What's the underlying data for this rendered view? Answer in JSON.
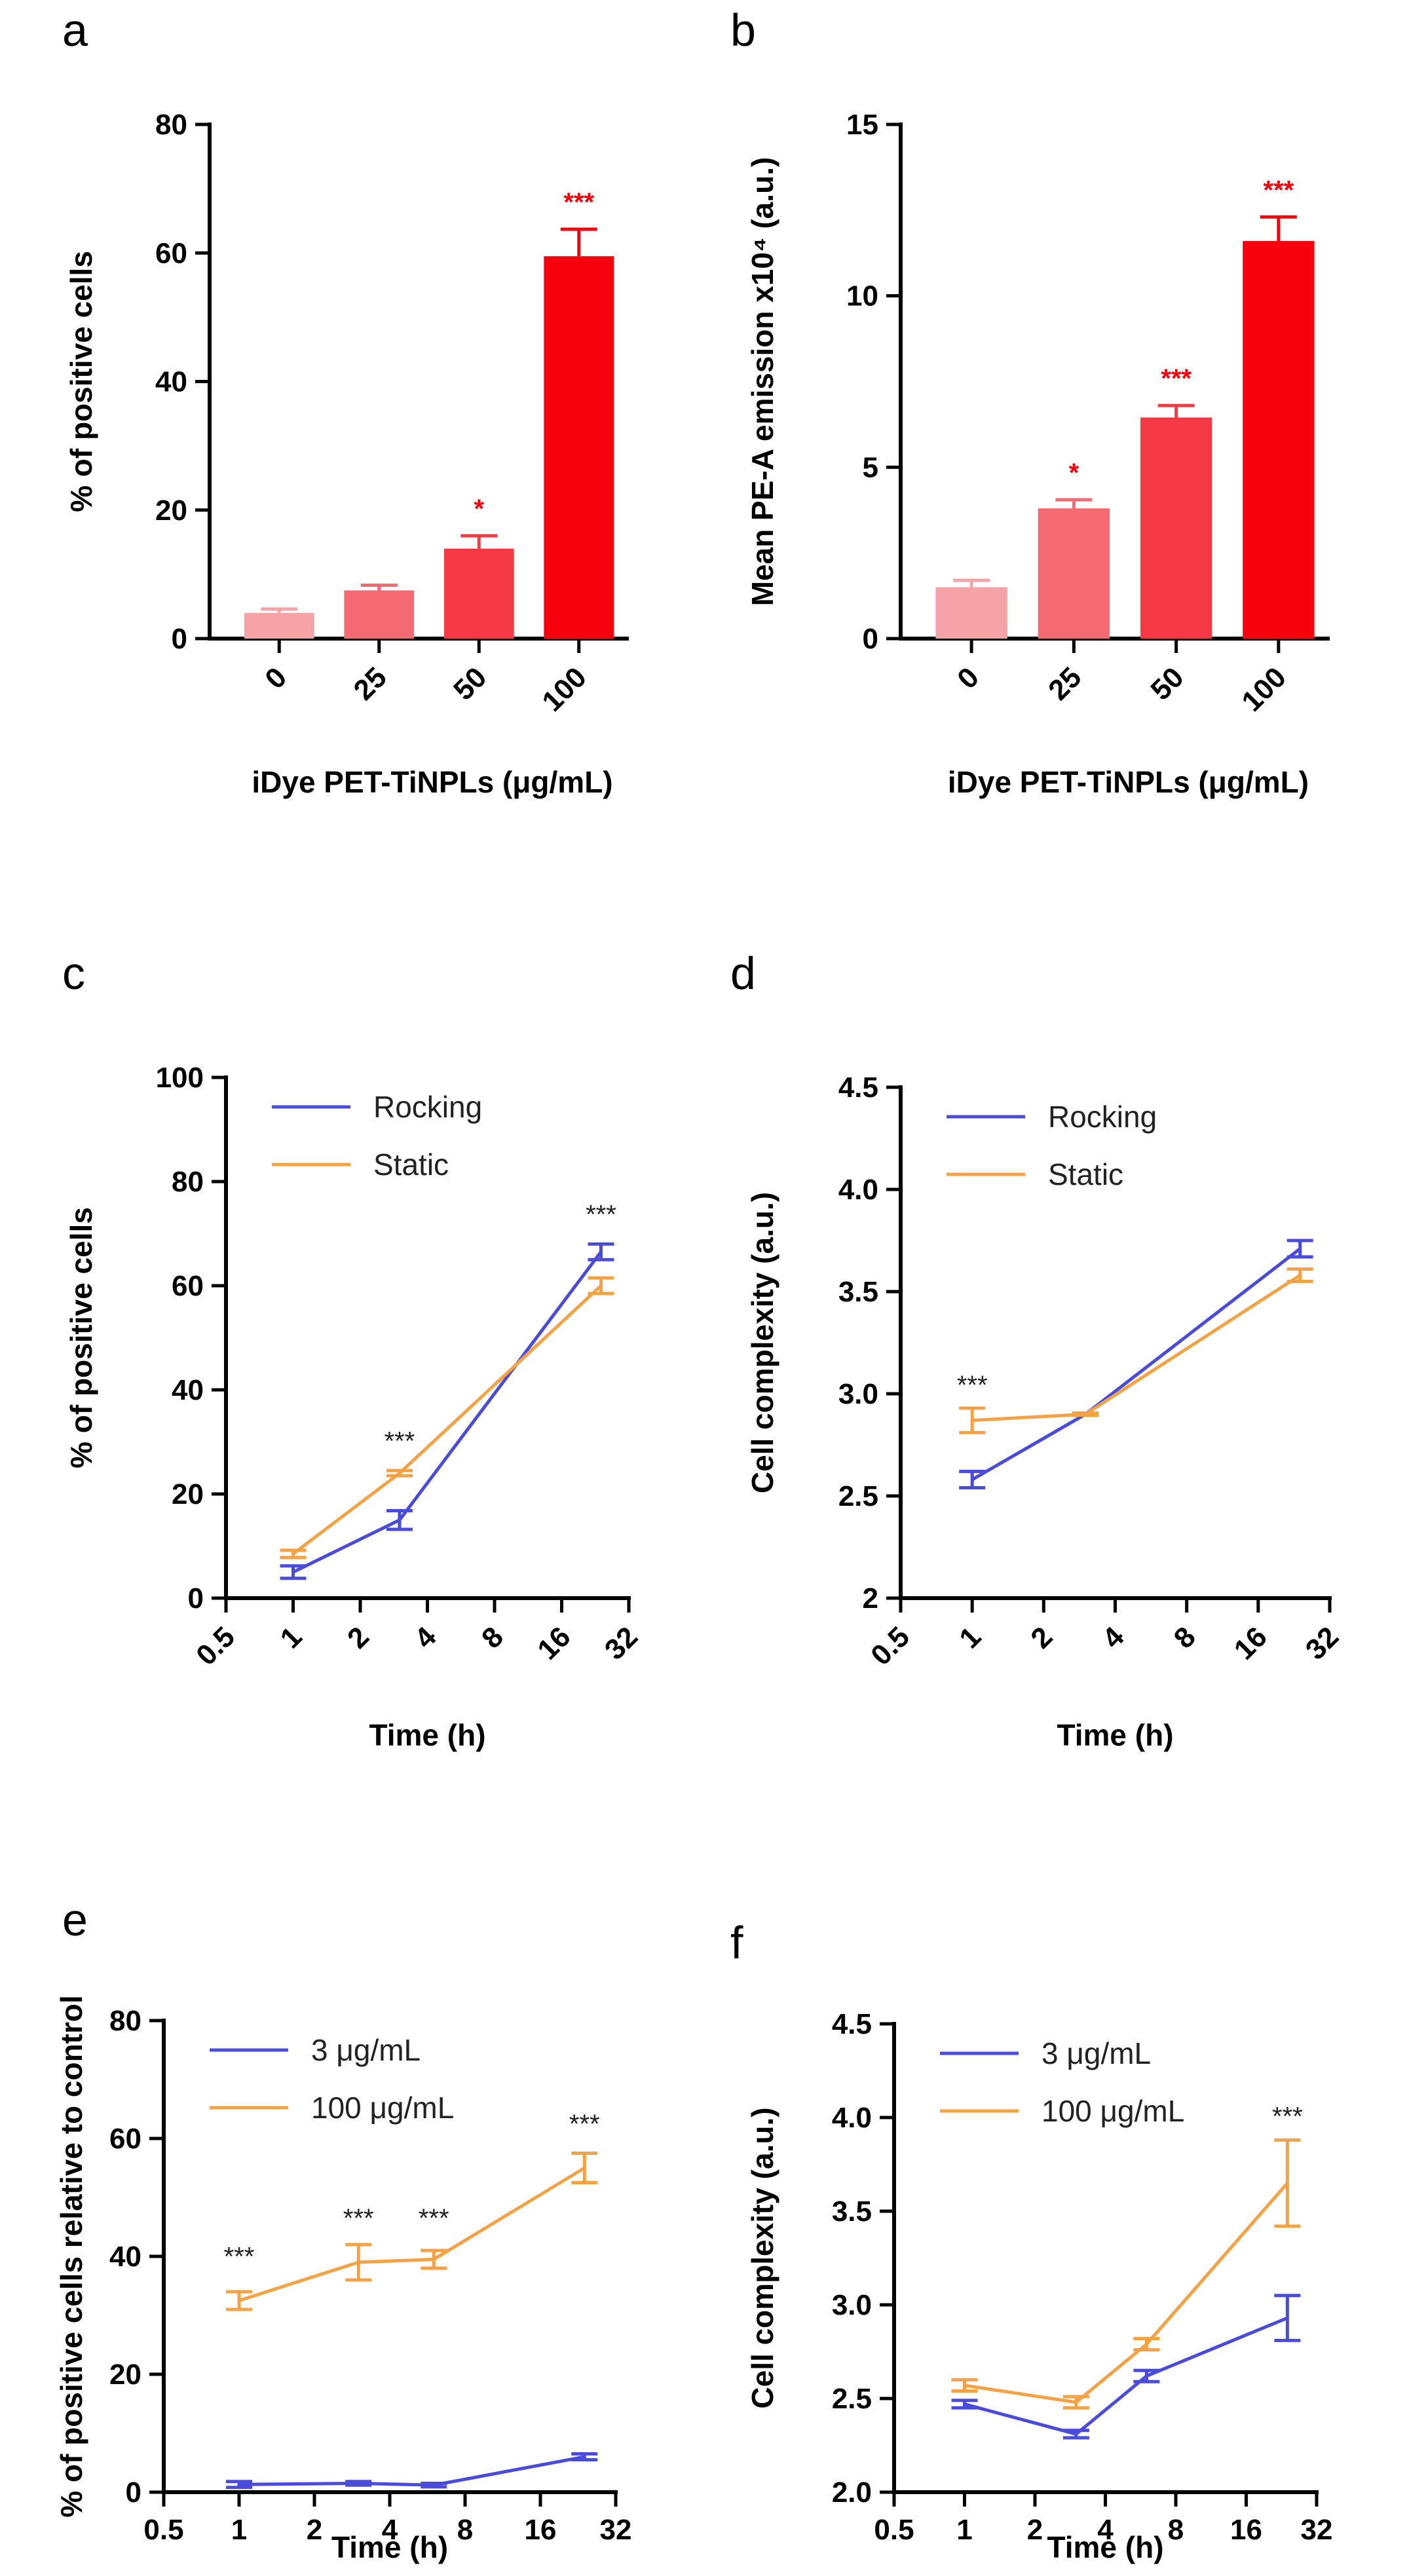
{
  "chart_data": [
    {
      "panel": "a",
      "type": "bar",
      "title": "a",
      "xlabel": "iDye PET-TiNPLs (μg/mL)",
      "ylabel": "% of positive cells",
      "ylim": [
        0,
        80
      ],
      "yticks": [
        0,
        20,
        40,
        60,
        80
      ],
      "categories": [
        "0",
        "25",
        "50",
        "100"
      ],
      "values": [
        4,
        7.5,
        14,
        59.5
      ],
      "errors": [
        0.6,
        0.8,
        2,
        4.2
      ],
      "significance": [
        "",
        "",
        "*",
        "***"
      ],
      "colors": [
        "#f6a3a8",
        "#f56a72",
        "#f63a45",
        "#f7000e"
      ]
    },
    {
      "panel": "b",
      "type": "bar",
      "title": "b",
      "xlabel": "iDye PET-TiNPLs (μg/mL)",
      "ylabel": "Mean PE-A emission x10⁴ (a.u.)",
      "ylim": [
        0,
        15
      ],
      "yticks": [
        0,
        5,
        10,
        15
      ],
      "categories": [
        "0",
        "25",
        "50",
        "100"
      ],
      "values": [
        1.5,
        3.8,
        6.45,
        11.6
      ],
      "errors": [
        0.2,
        0.25,
        0.35,
        0.7
      ],
      "significance": [
        "",
        "*",
        "***",
        "***"
      ],
      "colors": [
        "#f6a3a8",
        "#f56a72",
        "#f63a45",
        "#f7000e"
      ]
    },
    {
      "panel": "c",
      "type": "line",
      "title": "c",
      "xlabel": "Time (h)",
      "ylabel": "% of positive cells",
      "xscale": "log2",
      "xlim": [
        0.5,
        32
      ],
      "xticks": [
        "0.5",
        "1",
        "2",
        "4",
        "8",
        "16",
        "32"
      ],
      "ylim": [
        0,
        100
      ],
      "yticks": [
        0,
        20,
        40,
        60,
        80,
        100
      ],
      "tick_rotate": true,
      "series": [
        {
          "name": "Rocking",
          "color": "#4a4bdc",
          "x": [
            1,
            3,
            24
          ],
          "values": [
            5,
            15,
            66.5
          ],
          "errors": [
            1.2,
            1.8,
            1.5
          ]
        },
        {
          "name": "Static",
          "color": "#f5a245",
          "x": [
            1,
            3,
            24
          ],
          "values": [
            8.5,
            24,
            60
          ],
          "errors": [
            0.7,
            0.5,
            1.5
          ]
        }
      ],
      "annotations": [
        {
          "x": 3,
          "y": 28.5,
          "text": "***"
        },
        {
          "x": 24,
          "y": 72,
          "text": "***"
        }
      ]
    },
    {
      "panel": "d",
      "type": "line",
      "title": "d",
      "xlabel": "Time (h)",
      "ylabel": "Cell complexity (a.u.)",
      "xscale": "log2",
      "xlim": [
        0.5,
        32
      ],
      "xticks": [
        "0.5",
        "1",
        "2",
        "4",
        "8",
        "16",
        "32"
      ],
      "ylim": [
        2,
        4.5
      ],
      "yticks": [
        "2",
        "2.5",
        "3.0",
        "3.5",
        "4.0",
        "4.5"
      ],
      "tick_rotate": true,
      "series": [
        {
          "name": "Rocking",
          "color": "#4a4bdc",
          "x": [
            1,
            3,
            24
          ],
          "values": [
            2.58,
            2.9,
            3.71
          ],
          "errors": [
            0.04,
            0.005,
            0.04
          ]
        },
        {
          "name": "Static",
          "color": "#f5a245",
          "x": [
            1,
            3,
            24
          ],
          "values": [
            2.87,
            2.9,
            3.58
          ],
          "errors": [
            0.06,
            0.005,
            0.03
          ]
        }
      ],
      "annotations": [
        {
          "x": 1,
          "y": 3.0,
          "text": "***"
        }
      ]
    },
    {
      "panel": "e",
      "type": "line",
      "title": "e",
      "xlabel": "Time (h)",
      "ylabel": "% of positive cells relative to control",
      "xscale": "log2",
      "xlim": [
        0.5,
        32
      ],
      "xticks": [
        "0.5",
        "1",
        "2",
        "4",
        "8",
        "16",
        "32"
      ],
      "ylim": [
        0,
        80
      ],
      "yticks": [
        0,
        20,
        40,
        60,
        80
      ],
      "tick_rotate": false,
      "series": [
        {
          "name": "3 μg/mL",
          "color": "#4a4bdc",
          "x": [
            1,
            3,
            6,
            24
          ],
          "values": [
            1.3,
            1.5,
            1.2,
            6
          ],
          "errors": [
            0.5,
            0.3,
            0.3,
            0.5
          ]
        },
        {
          "name": "100 μg/mL",
          "color": "#f5a245",
          "x": [
            1,
            3,
            6,
            24
          ],
          "values": [
            32.5,
            39,
            39.5,
            55
          ],
          "errors": [
            1.5,
            3,
            1.5,
            2.5
          ]
        }
      ],
      "annotations": [
        {
          "x": 1,
          "y": 38.5,
          "text": "***"
        },
        {
          "x": 3,
          "y": 45,
          "text": "***"
        },
        {
          "x": 6,
          "y": 45,
          "text": "***"
        },
        {
          "x": 24,
          "y": 61,
          "text": "***"
        }
      ]
    },
    {
      "panel": "f",
      "type": "line",
      "title": "f",
      "xlabel": "Time (h)",
      "ylabel": "Cell complexity (a.u.)",
      "xscale": "log2",
      "xlim": [
        0.5,
        32
      ],
      "xticks": [
        "0.5",
        "1",
        "2",
        "4",
        "8",
        "16",
        "32"
      ],
      "ylim": [
        2,
        4.5
      ],
      "yticks": [
        "2.0",
        "2.5",
        "3.0",
        "3.5",
        "4.0",
        "4.5"
      ],
      "tick_rotate": false,
      "series": [
        {
          "name": "3 μg/mL",
          "color": "#4a4bdc",
          "x": [
            1,
            3,
            6,
            24
          ],
          "values": [
            2.47,
            2.31,
            2.62,
            2.93
          ],
          "errors": [
            0.02,
            0.02,
            0.03,
            0.12
          ]
        },
        {
          "name": "100 μg/mL",
          "color": "#f5a245",
          "x": [
            1,
            3,
            6,
            24
          ],
          "values": [
            2.57,
            2.48,
            2.79,
            3.65
          ],
          "errors": [
            0.03,
            0.03,
            0.03,
            0.23
          ]
        }
      ],
      "annotations": [
        {
          "x": 24,
          "y": 3.96,
          "text": "***"
        }
      ]
    }
  ]
}
